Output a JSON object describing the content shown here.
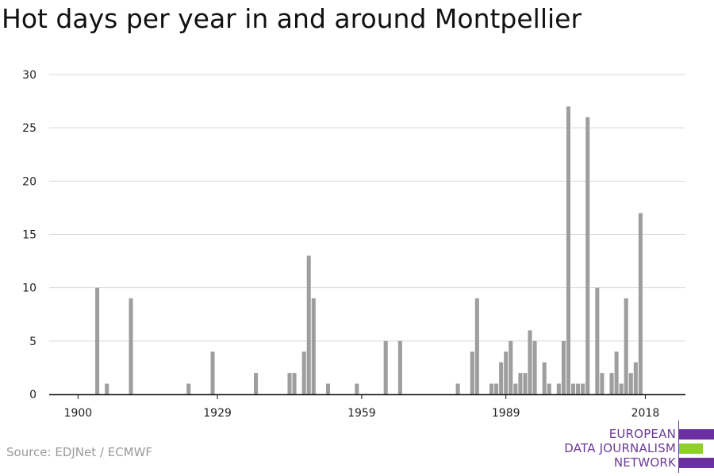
{
  "title": "Hot days per year in and around Montpellier",
  "source": "Source: EDJNet / ECMWF",
  "logo": {
    "line1": "EUROPEAN",
    "line2": "DATA JOURNALISM",
    "line3": "NETWORK"
  },
  "colors": {
    "bar": "#9e9e9e",
    "grid": "#d9d9d9",
    "axis": "#111111",
    "logo_purple": "#6b2fa0",
    "logo_green": "#8fd12a"
  },
  "chart_data": {
    "type": "bar",
    "title": "Hot days per year in and around Montpellier",
    "xlabel": "",
    "ylabel": "",
    "ylim": [
      0,
      30
    ],
    "yticks": [
      0,
      5,
      10,
      15,
      20,
      25,
      30
    ],
    "xticks": [
      1900,
      1929,
      1959,
      1989,
      2018
    ],
    "grid": true,
    "x": [
      1904,
      1906,
      1911,
      1923,
      1928,
      1937,
      1944,
      1945,
      1947,
      1948,
      1949,
      1952,
      1958,
      1964,
      1967,
      1979,
      1982,
      1983,
      1986,
      1987,
      1988,
      1989,
      1990,
      1991,
      1992,
      1993,
      1994,
      1995,
      1997,
      1998,
      2000,
      2001,
      2002,
      2003,
      2004,
      2005,
      2006,
      2008,
      2009,
      2011,
      2012,
      2013,
      2014,
      2015,
      2016,
      2017,
      2018
    ],
    "values": [
      10,
      1,
      9,
      1,
      4,
      2,
      2,
      2,
      4,
      13,
      9,
      1,
      1,
      5,
      5,
      1,
      4,
      9,
      1,
      1,
      3,
      4,
      5,
      1,
      2,
      2,
      6,
      5,
      3,
      1,
      1,
      5,
      27,
      1,
      1,
      1,
      26,
      10,
      2,
      2,
      4,
      1,
      9,
      2,
      3,
      17,
      0
    ]
  }
}
